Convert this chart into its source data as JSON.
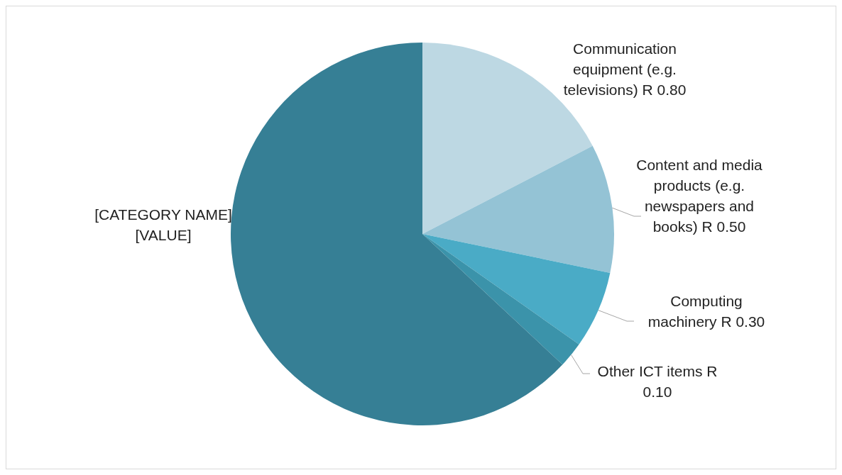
{
  "chart_data": {
    "type": "pie",
    "categories": [
      "Communication equipment (e.g. televisions)",
      "Content and media products (e.g. newspapers and books)",
      "Computing machinery",
      "Other ICT items ",
      "[CATEGORY NAME]"
    ],
    "values": [
      0.8,
      0.5,
      0.3,
      0.1,
      2.9
    ],
    "value_labels": [
      "R 0.80",
      "R 0.50",
      "R 0.30",
      "R 0.10",
      "[VALUE]"
    ],
    "colors": [
      "#bdd8e3",
      "#94c3d5",
      "#4aabc6",
      "#3b93aa",
      "#367f95"
    ]
  }
}
